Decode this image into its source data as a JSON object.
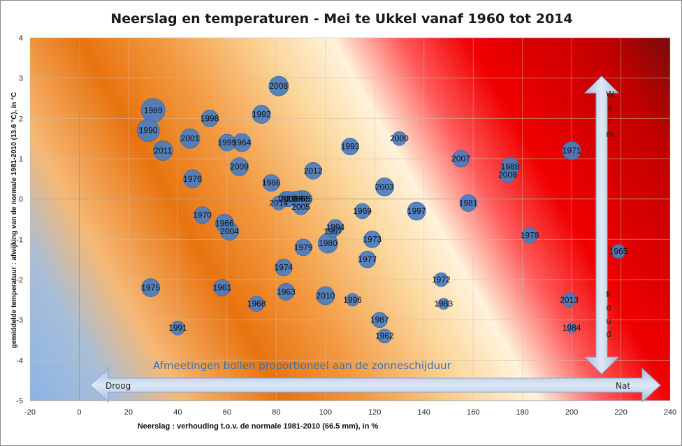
{
  "chart_data": {
    "type": "scatter",
    "title": "Neerslag en temperaturen - Mei te Ukkel vanaf 1960 tot 2014",
    "xlabel": "Neerslag : verhouding t.o.v. de normale 1981-2010 (66.5 mm), in %",
    "ylabel": "gemiddelde temperatuur : afwijking  van de normale 1981-2010 (13.6 °C), in °C",
    "xlim": [
      -20,
      240
    ],
    "ylim": [
      -5,
      4
    ],
    "xticks": [
      "-20",
      "0",
      "20",
      "40",
      "60",
      "80",
      "100",
      "120",
      "140",
      "160",
      "180",
      "200",
      "220",
      "240"
    ],
    "yticks": [
      "4",
      "3",
      "2",
      "1",
      "0",
      "-1",
      "-2",
      "-3",
      "-4",
      "-5"
    ],
    "grid": true,
    "annotation": "Afmeetingen bollen proportioneel aan de zonneschijduur",
    "arrow_left_label": "Droog",
    "arrow_right_label": "Nat",
    "arrow_top_label": "Warm",
    "arrow_bottom_label": "Koud",
    "highlight_color": "#ffff00",
    "bubble_color": "#4a7dc0",
    "points": [
      {
        "year": "1960",
        "x": 88,
        "y": 0.0,
        "r": 11
      },
      {
        "year": "1961",
        "x": 58,
        "y": -2.2,
        "r": 12
      },
      {
        "year": "1962",
        "x": 124,
        "y": -3.4,
        "r": 10
      },
      {
        "year": "1963",
        "x": 84,
        "y": -2.3,
        "r": 12
      },
      {
        "year": "1964",
        "x": 66,
        "y": 1.4,
        "r": 13
      },
      {
        "year": "1965",
        "x": 219,
        "y": -1.3,
        "r": 10
      },
      {
        "year": "1966",
        "x": 59,
        "y": -0.6,
        "r": 13
      },
      {
        "year": "1967",
        "x": 103,
        "y": -0.8,
        "r": 9
      },
      {
        "year": "1968",
        "x": 72,
        "y": -2.6,
        "r": 11
      },
      {
        "year": "1969",
        "x": 115,
        "y": -0.3,
        "r": 11
      },
      {
        "year": "1970",
        "x": 50,
        "y": -0.4,
        "r": 12
      },
      {
        "year": "1971",
        "x": 200,
        "y": 1.2,
        "r": 13
      },
      {
        "year": "1972",
        "x": 147,
        "y": -2.0,
        "r": 10
      },
      {
        "year": "1973",
        "x": 119,
        "y": -1.0,
        "r": 12
      },
      {
        "year": "1974",
        "x": 83,
        "y": -1.7,
        "r": 12
      },
      {
        "year": "1975",
        "x": 29,
        "y": -2.2,
        "r": 13
      },
      {
        "year": "1976",
        "x": 46,
        "y": 0.5,
        "r": 13
      },
      {
        "year": "1977",
        "x": 117,
        "y": -1.5,
        "r": 12
      },
      {
        "year": "1978",
        "x": 183,
        "y": -0.9,
        "r": 11
      },
      {
        "year": "1979",
        "x": 91,
        "y": -1.2,
        "r": 12
      },
      {
        "year": "1980",
        "x": 101,
        "y": -1.1,
        "r": 14
      },
      {
        "year": "1981",
        "x": 158,
        "y": -0.1,
        "r": 12
      },
      {
        "year": "1982",
        "x": 84,
        "y": 0.0,
        "r": 11
      },
      {
        "year": "1983",
        "x": 148,
        "y": -2.6,
        "r": 8
      },
      {
        "year": "1984",
        "x": 200,
        "y": -3.2,
        "r": 7
      },
      {
        "year": "1985",
        "x": 90,
        "y": 0.0,
        "r": 12
      },
      {
        "year": "1986",
        "x": 78,
        "y": 0.4,
        "r": 12
      },
      {
        "year": "1987",
        "x": 122,
        "y": -3.0,
        "r": 11
      },
      {
        "year": "1988",
        "x": 175,
        "y": 0.8,
        "r": 13
      },
      {
        "year": "1989",
        "x": 30,
        "y": 2.2,
        "r": 17
      },
      {
        "year": "1990",
        "x": 28,
        "y": 1.7,
        "r": 16
      },
      {
        "year": "1991",
        "x": 40,
        "y": -3.2,
        "r": 10
      },
      {
        "year": "1992",
        "x": 74,
        "y": 2.1,
        "r": 13
      },
      {
        "year": "1993",
        "x": 110,
        "y": 1.3,
        "r": 12
      },
      {
        "year": "1994",
        "x": 104,
        "y": -0.7,
        "r": 11
      },
      {
        "year": "1995",
        "x": 91,
        "y": 0.0,
        "r": 12
      },
      {
        "year": "1996",
        "x": 111,
        "y": -2.5,
        "r": 9
      },
      {
        "year": "1997",
        "x": 137,
        "y": -0.3,
        "r": 13
      },
      {
        "year": "1998",
        "x": 53,
        "y": 2.0,
        "r": 12
      },
      {
        "year": "1999",
        "x": 60,
        "y": 1.4,
        "r": 12
      },
      {
        "year": "2000",
        "x": 130,
        "y": 1.5,
        "r": 10
      },
      {
        "year": "2001",
        "x": 45,
        "y": 1.5,
        "r": 14
      },
      {
        "year": "2002",
        "x": 85,
        "y": 0.0,
        "r": 11
      },
      {
        "year": "2003",
        "x": 124,
        "y": 0.3,
        "r": 13
      },
      {
        "year": "2004",
        "x": 61,
        "y": -0.8,
        "r": 13
      },
      {
        "year": "2005",
        "x": 90,
        "y": -0.2,
        "r": 11
      },
      {
        "year": "2006",
        "x": 174,
        "y": 0.6,
        "r": 11
      },
      {
        "year": "2007",
        "x": 155,
        "y": 1.0,
        "r": 12
      },
      {
        "year": "2008",
        "x": 81,
        "y": 2.8,
        "r": 14
      },
      {
        "year": "2009",
        "x": 65,
        "y": 0.8,
        "r": 13
      },
      {
        "year": "2010",
        "x": 100,
        "y": -2.4,
        "r": 13
      },
      {
        "year": "2011",
        "x": 34,
        "y": 1.2,
        "r": 14
      },
      {
        "year": "2012",
        "x": 95,
        "y": 0.7,
        "r": 12
      },
      {
        "year": "2013",
        "x": 199,
        "y": -2.5,
        "r": 10
      },
      {
        "year": "2014",
        "x": 81,
        "y": -0.1,
        "r": 10,
        "highlight": true
      }
    ]
  }
}
